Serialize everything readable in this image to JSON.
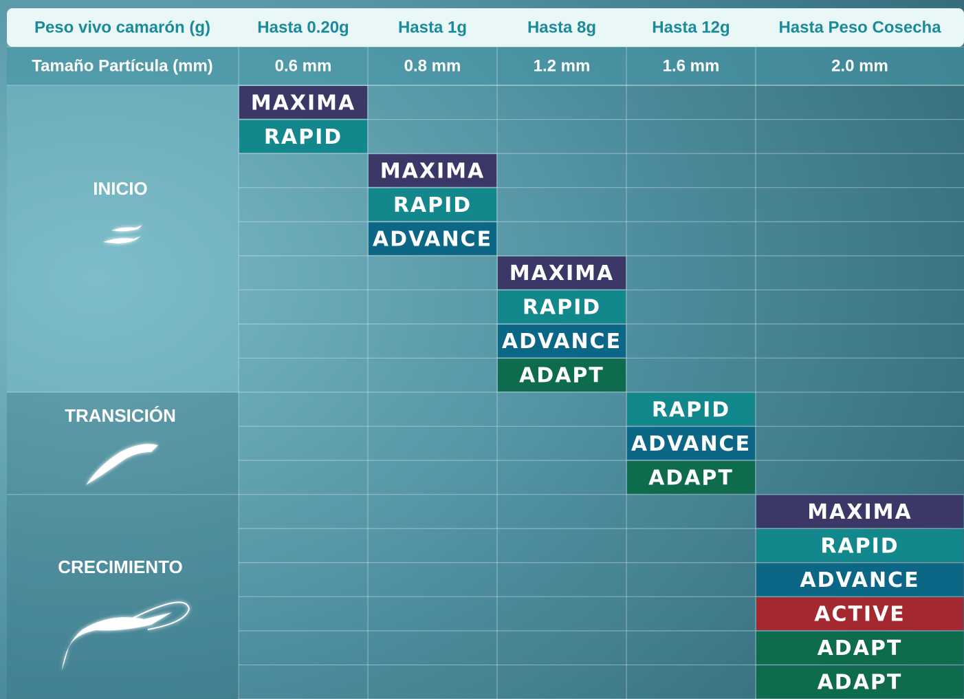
{
  "header": {
    "weight_label": "Peso vivo camarón (g)",
    "particle_label": "Tamaño Partícula (mm)"
  },
  "columns": [
    {
      "weight": "Hasta 0.20g",
      "particle": "0.6 mm",
      "products": [
        {
          "name": "MAXIMA",
          "color": "#3b3868"
        },
        {
          "name": "RAPID",
          "color": "#13888c"
        }
      ]
    },
    {
      "weight": "Hasta 1g",
      "particle": "0.8 mm",
      "products": [
        {
          "name": "MAXIMA",
          "color": "#3b3868"
        },
        {
          "name": "RAPID",
          "color": "#13888c"
        },
        {
          "name": "ADVANCE",
          "color": "#0c6686"
        }
      ]
    },
    {
      "weight": "Hasta 8g",
      "particle": "1.2 mm",
      "products": [
        {
          "name": "MAXIMA",
          "color": "#3b3868"
        },
        {
          "name": "RAPID",
          "color": "#13888c"
        },
        {
          "name": "ADVANCE",
          "color": "#0c6686"
        },
        {
          "name": "ADAPT",
          "color": "#0f6b4d"
        }
      ]
    },
    {
      "weight": "Hasta 12g",
      "particle": "1.6 mm",
      "products": [
        {
          "name": "RAPID",
          "color": "#13888c"
        },
        {
          "name": "ADVANCE",
          "color": "#0c6686"
        },
        {
          "name": "ADAPT",
          "color": "#0f6b4d"
        }
      ]
    },
    {
      "weight": "Hasta Peso Cosecha",
      "particle": "2.0 mm",
      "products": [
        {
          "name": "MAXIMA",
          "color": "#3b3868"
        },
        {
          "name": "RAPID",
          "color": "#13888c"
        },
        {
          "name": "ADVANCE",
          "color": "#0c6686"
        },
        {
          "name": "ACTIVE",
          "color": "#a3282f"
        },
        {
          "name": "ADAPT",
          "color": "#0f6b4d"
        },
        {
          "name": "ADAPT",
          "color": "#0f6b4d"
        }
      ]
    }
  ],
  "stages": [
    "INICIO",
    "TRANSICIÓN",
    "CRECIMIENTO"
  ]
}
